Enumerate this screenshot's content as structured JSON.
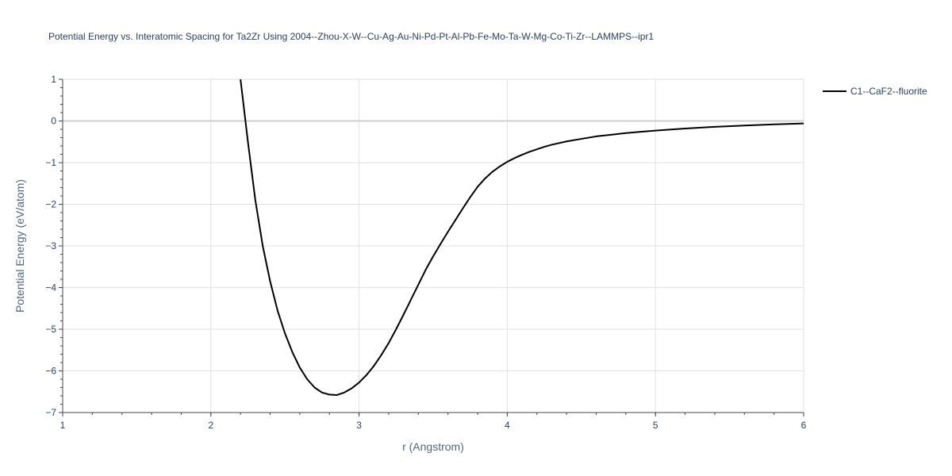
{
  "chart_data": {
    "type": "line",
    "title": "Potential Energy vs. Interatomic Spacing for Ta2Zr Using 2004--Zhou-X-W--Cu-Ag-Au-Ni-Pd-Pt-Al-Pb-Fe-Mo-Ta-W-Mg-Co-Ti-Zr--LAMMPS--ipr1",
    "xlabel": "r (Angstrom)",
    "ylabel": "Potential Energy (eV/atom)",
    "xlim": [
      1,
      6
    ],
    "ylim": [
      -7,
      1
    ],
    "x_ticks": [
      "1",
      "2",
      "3",
      "4",
      "5",
      "6"
    ],
    "y_ticks": [
      "1",
      "0",
      "−1",
      "−2",
      "−3",
      "−4",
      "−5",
      "−6",
      "−7"
    ],
    "grid": true,
    "legend_position": "top-right",
    "series": [
      {
        "name": "C1--CaF2--fluorite",
        "color": "#000000",
        "x": [
          2.2,
          2.25,
          2.3,
          2.35,
          2.4,
          2.45,
          2.5,
          2.55,
          2.6,
          2.65,
          2.7,
          2.75,
          2.8,
          2.85,
          2.9,
          2.95,
          3.0,
          3.05,
          3.1,
          3.15,
          3.2,
          3.25,
          3.3,
          3.35,
          3.4,
          3.45,
          3.5,
          3.55,
          3.6,
          3.65,
          3.7,
          3.75,
          3.8,
          3.85,
          3.9,
          3.95,
          4.0,
          4.05,
          4.1,
          4.15,
          4.2,
          4.25,
          4.3,
          4.4,
          4.5,
          4.6,
          4.7,
          4.8,
          4.9,
          5.0,
          5.2,
          5.4,
          5.6,
          5.8,
          6.0
        ],
        "y": [
          1.0,
          -0.5,
          -1.9,
          -3.0,
          -3.85,
          -4.55,
          -5.1,
          -5.55,
          -5.92,
          -6.2,
          -6.4,
          -6.52,
          -6.57,
          -6.58,
          -6.52,
          -6.42,
          -6.28,
          -6.1,
          -5.88,
          -5.62,
          -5.33,
          -5.0,
          -4.65,
          -4.29,
          -3.93,
          -3.57,
          -3.25,
          -2.95,
          -2.66,
          -2.38,
          -2.1,
          -1.83,
          -1.58,
          -1.38,
          -1.22,
          -1.09,
          -0.98,
          -0.89,
          -0.81,
          -0.74,
          -0.68,
          -0.62,
          -0.57,
          -0.49,
          -0.43,
          -0.37,
          -0.33,
          -0.29,
          -0.26,
          -0.23,
          -0.18,
          -0.14,
          -0.11,
          -0.08,
          -0.06
        ]
      }
    ]
  }
}
